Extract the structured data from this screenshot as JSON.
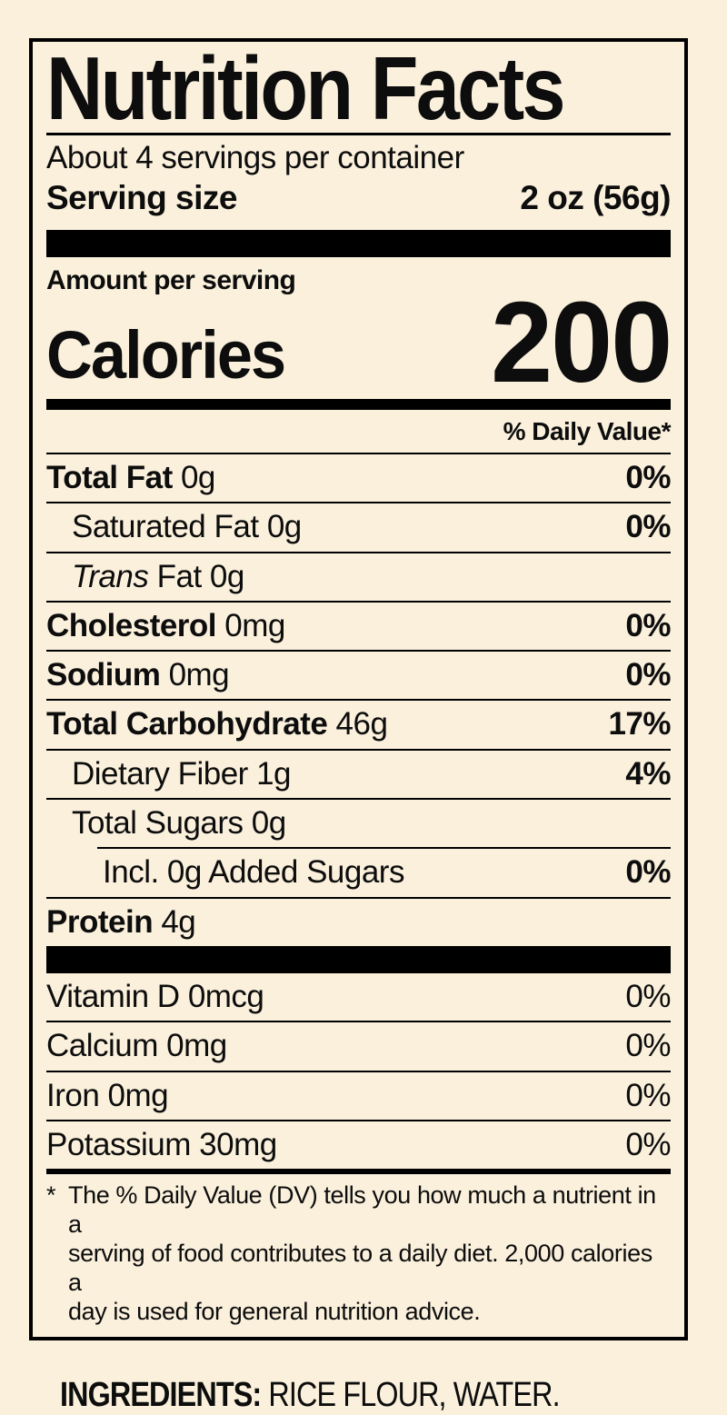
{
  "colors": {
    "background": "#FAF0DC",
    "ink": "#0D0D0D",
    "rule": "#000000"
  },
  "label": {
    "title": "Nutrition Facts",
    "servings_per_container": "About 4 servings per container",
    "serving_size": {
      "label": "Serving size",
      "value": "2 oz (56g)"
    },
    "amount_per_serving": "Amount per serving",
    "calories": {
      "label": "Calories",
      "value": "200"
    },
    "daily_value_header": "% Daily Value*",
    "nutrients": [
      {
        "name": "Total Fat",
        "amount": "0g",
        "dv": "0%"
      },
      {
        "name": "Saturated Fat",
        "amount": "0g",
        "dv": "0%"
      },
      {
        "name_italic": "Trans",
        "name_rest": "Fat",
        "amount": "0g",
        "dv": ""
      },
      {
        "name": "Cholesterol",
        "amount": "0mg",
        "dv": "0%"
      },
      {
        "name": "Sodium",
        "amount": "0mg",
        "dv": "0%"
      },
      {
        "name": "Total Carbohydrate",
        "amount": "46g",
        "dv": "17%"
      },
      {
        "name": "Dietary Fiber",
        "amount": "1g",
        "dv": "4%"
      },
      {
        "name": "Total Sugars",
        "amount": "0g",
        "dv": ""
      },
      {
        "name": "Incl. 0g Added Sugars",
        "amount": "",
        "dv": "0%"
      },
      {
        "name": "Protein",
        "amount": "4g",
        "dv": ""
      }
    ],
    "vitamins": [
      {
        "name": "Vitamin D",
        "amount": "0mcg",
        "dv": "0%"
      },
      {
        "name": "Calcium",
        "amount": "0mg",
        "dv": "0%"
      },
      {
        "name": "Iron",
        "amount": "0mg",
        "dv": "0%"
      },
      {
        "name": "Potassium",
        "amount": "30mg",
        "dv": "0%"
      }
    ],
    "footnote": {
      "asterisk": "*",
      "lines": [
        "The % Daily Value (DV) tells you how much a nutrient in a",
        "serving of food contributes to a daily diet. 2,000 calories a",
        "day is used for general nutrition advice."
      ]
    }
  },
  "ingredients": {
    "label": "INGREDIENTS:",
    "value": "RICE FLOUR, WATER."
  }
}
